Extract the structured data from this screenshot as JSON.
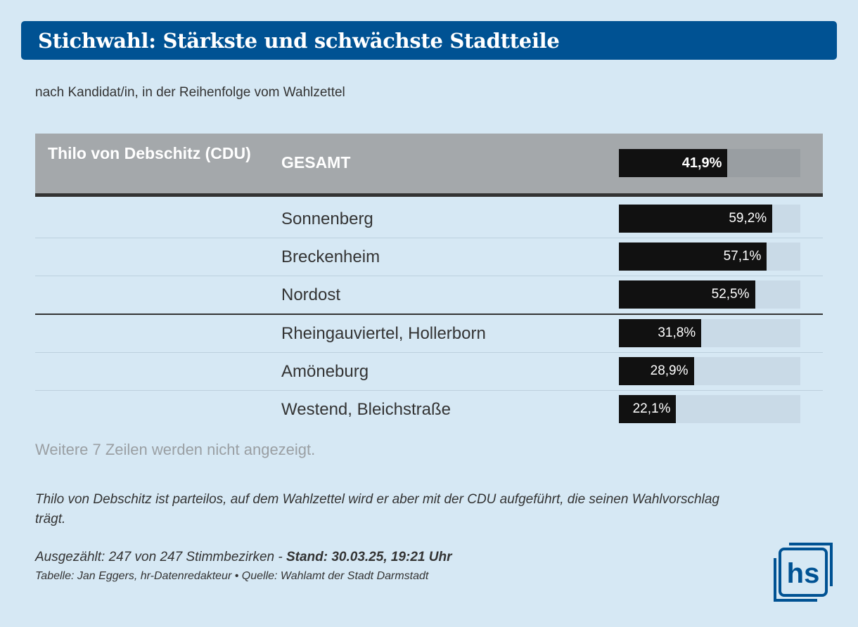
{
  "title": "Stichwahl: Stärkste und schwächste Stadtteile",
  "subtitle": "nach Kandidat/in, in der Reihenfolge vom Wahlzettel",
  "chart_data": {
    "type": "bar",
    "orientation": "horizontal",
    "xlim": [
      0,
      70
    ],
    "header": {
      "candidate": "Thilo von Debschitz (CDU)",
      "area": "GESAMT",
      "value": 41.9,
      "label": "41,9%"
    },
    "categories": [
      "Sonnenberg",
      "Breckenheim",
      "Nordost",
      "Rheingauviertel, Hollerborn",
      "Amöneburg",
      "Westend, Bleichstraße"
    ],
    "values": [
      59.2,
      57.1,
      52.5,
      31.8,
      28.9,
      22.1
    ],
    "labels": [
      "59,2%",
      "57,1%",
      "52,5%",
      "31,8%",
      "28,9%",
      "22,1%"
    ],
    "groups": [
      "stärkste",
      "stärkste",
      "stärkste",
      "schwächste",
      "schwächste",
      "schwächste"
    ]
  },
  "more_rows": "Weitere 7 Zeilen werden nicht angezeigt.",
  "note": "Thilo von Debschitz ist parteilos, auf dem Wahlzettel wird er aber mit der CDU aufgeführt, die seinen Wahlvorschlag trägt.",
  "count_prefix": "Ausgezählt: 247 von 247 Stimmbezirken - ",
  "count_stand": "Stand: 30.03.25, 19:21 Uhr",
  "credit": "Tabelle: Jan Eggers, hr-Datenredakteur • Quelle: Wahlamt der Stadt Darmstadt",
  "logo_text": "hs",
  "colors": {
    "brand": "#005293",
    "bar": "#111111",
    "track": "#c9dae7",
    "background": "#d6e8f4"
  }
}
